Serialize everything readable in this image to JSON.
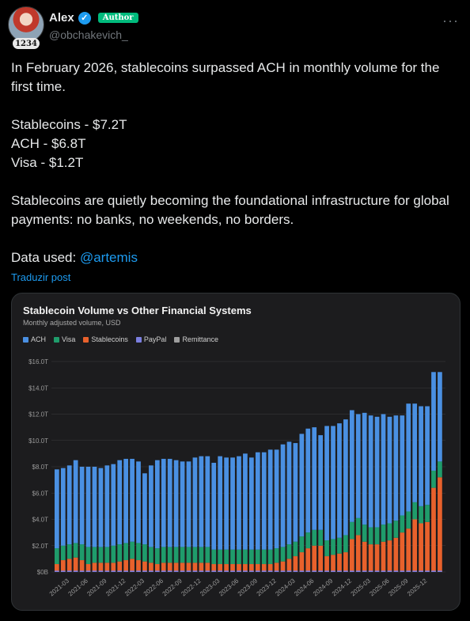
{
  "author": {
    "name": "Alex",
    "handle": "@obchakevich_",
    "badge": "Author",
    "level": "1234"
  },
  "tweet": {
    "para1": "In February 2026, stablecoins surpassed ACH in monthly volume for the first time.",
    "line_stablecoins": "Stablecoins - $7.2T",
    "line_ach": "ACH - $6.8T",
    "line_visa": "Visa - $1.2T",
    "para3": "Stablecoins are quietly becoming the foundational infrastructure for global payments: no banks, no weekends, no borders.",
    "data_used_prefix": "Data used: ",
    "mention": "@artemis",
    "translate": "Traduzir post"
  },
  "chart_data": {
    "type": "bar",
    "stacked": true,
    "title": "Stablecoin Volume vs Other Financial Systems",
    "subtitle": "Monthly adjusted volume, USD",
    "legend_position": "top-left",
    "ylim": [
      0,
      16
    ],
    "y_ticks": [
      "$0B",
      "$2.0T",
      "$4.0T",
      "$6.0T",
      "$8.0T",
      "$10.0T",
      "$12.0T",
      "$14.0T",
      "$16.0T"
    ],
    "x_ticks": [
      "2021-03",
      "2021-06",
      "2021-09",
      "2021-12",
      "2022-03",
      "2022-06",
      "2022-09",
      "2022-12",
      "2023-03",
      "2023-06",
      "2023-09",
      "2023-12",
      "2024-03",
      "2024-06",
      "2024-09",
      "2024-12",
      "2025-03",
      "2025-06",
      "2025-09",
      "2025-12"
    ],
    "colors": {
      "ACH": "#4a90e2",
      "Visa": "#1f9c6b",
      "Stablecoins": "#e8612c",
      "PayPal": "#7b7fe0",
      "Remittance": "#9e9e9e"
    },
    "series": [
      {
        "name": "Stablecoins",
        "values": [
          0.6,
          0.9,
          1.0,
          1.1,
          0.9,
          0.6,
          0.7,
          0.7,
          0.7,
          0.7,
          0.8,
          0.9,
          1.0,
          0.9,
          0.8,
          0.7,
          0.6,
          0.7,
          0.7,
          0.7,
          0.7,
          0.7,
          0.7,
          0.7,
          0.7,
          0.6,
          0.6,
          0.6,
          0.6,
          0.6,
          0.6,
          0.6,
          0.6,
          0.6,
          0.6,
          0.7,
          0.8,
          1.0,
          1.2,
          1.5,
          1.8,
          2.0,
          2.0,
          1.2,
          1.3,
          1.4,
          1.5,
          2.5,
          2.8,
          2.3,
          2.1,
          2.1,
          2.3,
          2.4,
          2.6,
          3.0,
          3.3,
          4.0,
          3.7,
          3.8,
          6.4,
          7.2
        ]
      },
      {
        "name": "Visa",
        "values": [
          1.2,
          1.1,
          1.1,
          1.1,
          1.2,
          1.3,
          1.2,
          1.2,
          1.2,
          1.3,
          1.3,
          1.3,
          1.3,
          1.3,
          1.3,
          1.2,
          1.2,
          1.2,
          1.2,
          1.2,
          1.2,
          1.2,
          1.2,
          1.2,
          1.2,
          1.1,
          1.1,
          1.1,
          1.1,
          1.1,
          1.1,
          1.1,
          1.1,
          1.1,
          1.1,
          1.1,
          1.1,
          1.1,
          1.1,
          1.2,
          1.2,
          1.2,
          1.2,
          1.2,
          1.2,
          1.2,
          1.3,
          1.3,
          1.3,
          1.3,
          1.3,
          1.3,
          1.3,
          1.3,
          1.3,
          1.3,
          1.3,
          1.3,
          1.3,
          1.3,
          1.3,
          1.2
        ]
      },
      {
        "name": "ACH",
        "values": [
          6.0,
          5.9,
          6.0,
          6.3,
          5.9,
          6.1,
          6.1,
          6.0,
          6.2,
          6.2,
          6.4,
          6.4,
          6.3,
          6.2,
          5.4,
          6.2,
          6.7,
          6.7,
          6.7,
          6.6,
          6.5,
          6.5,
          6.8,
          6.9,
          6.9,
          6.6,
          7.1,
          7.0,
          7.0,
          7.1,
          7.3,
          7.0,
          7.4,
          7.4,
          7.6,
          7.5,
          7.8,
          7.8,
          7.5,
          7.8,
          7.9,
          7.8,
          7.2,
          8.7,
          8.6,
          8.7,
          8.8,
          8.5,
          7.9,
          8.5,
          8.5,
          8.4,
          8.4,
          8.1,
          8.0,
          7.6,
          8.2,
          7.5,
          7.6,
          7.5,
          7.5,
          6.8
        ]
      },
      {
        "name": "PayPal",
        "values": [
          0.1,
          0.1,
          0.1,
          0.1,
          0.1,
          0.1,
          0.1,
          0.1,
          0.1,
          0.1,
          0.1,
          0.1,
          0.1,
          0.1,
          0.1,
          0.1,
          0.1,
          0.1,
          0.1,
          0.1,
          0.1,
          0.1,
          0.1,
          0.1,
          0.1,
          0.1,
          0.1,
          0.1,
          0.1,
          0.1,
          0.1,
          0.1,
          0.1,
          0.1,
          0.1,
          0.1,
          0.1,
          0.1,
          0.1,
          0.1,
          0.1,
          0.1,
          0.1,
          0.1,
          0.1,
          0.1,
          0.1,
          0.1,
          0.1,
          0.1,
          0.1,
          0.1,
          0.1,
          0.1,
          0.1,
          0.1,
          0.1,
          0.1,
          0.1,
          0.1,
          0.1,
          0.1
        ]
      },
      {
        "name": "Remittance",
        "values": [
          0.05,
          0.05,
          0.05,
          0.05,
          0.05,
          0.05,
          0.05,
          0.05,
          0.05,
          0.05,
          0.05,
          0.05,
          0.05,
          0.05,
          0.05,
          0.05,
          0.05,
          0.05,
          0.05,
          0.05,
          0.05,
          0.05,
          0.05,
          0.05,
          0.05,
          0.05,
          0.05,
          0.05,
          0.05,
          0.05,
          0.05,
          0.05,
          0.05,
          0.05,
          0.05,
          0.05,
          0.05,
          0.05,
          0.05,
          0.05,
          0.05,
          0.05,
          0.05,
          0.05,
          0.05,
          0.05,
          0.05,
          0.05,
          0.05,
          0.05,
          0.05,
          0.05,
          0.05,
          0.05,
          0.05,
          0.05,
          0.05,
          0.05,
          0.05,
          0.05,
          0.05,
          0.05
        ]
      }
    ],
    "legend_order": [
      "ACH",
      "Visa",
      "Stablecoins",
      "PayPal",
      "Remittance"
    ]
  }
}
